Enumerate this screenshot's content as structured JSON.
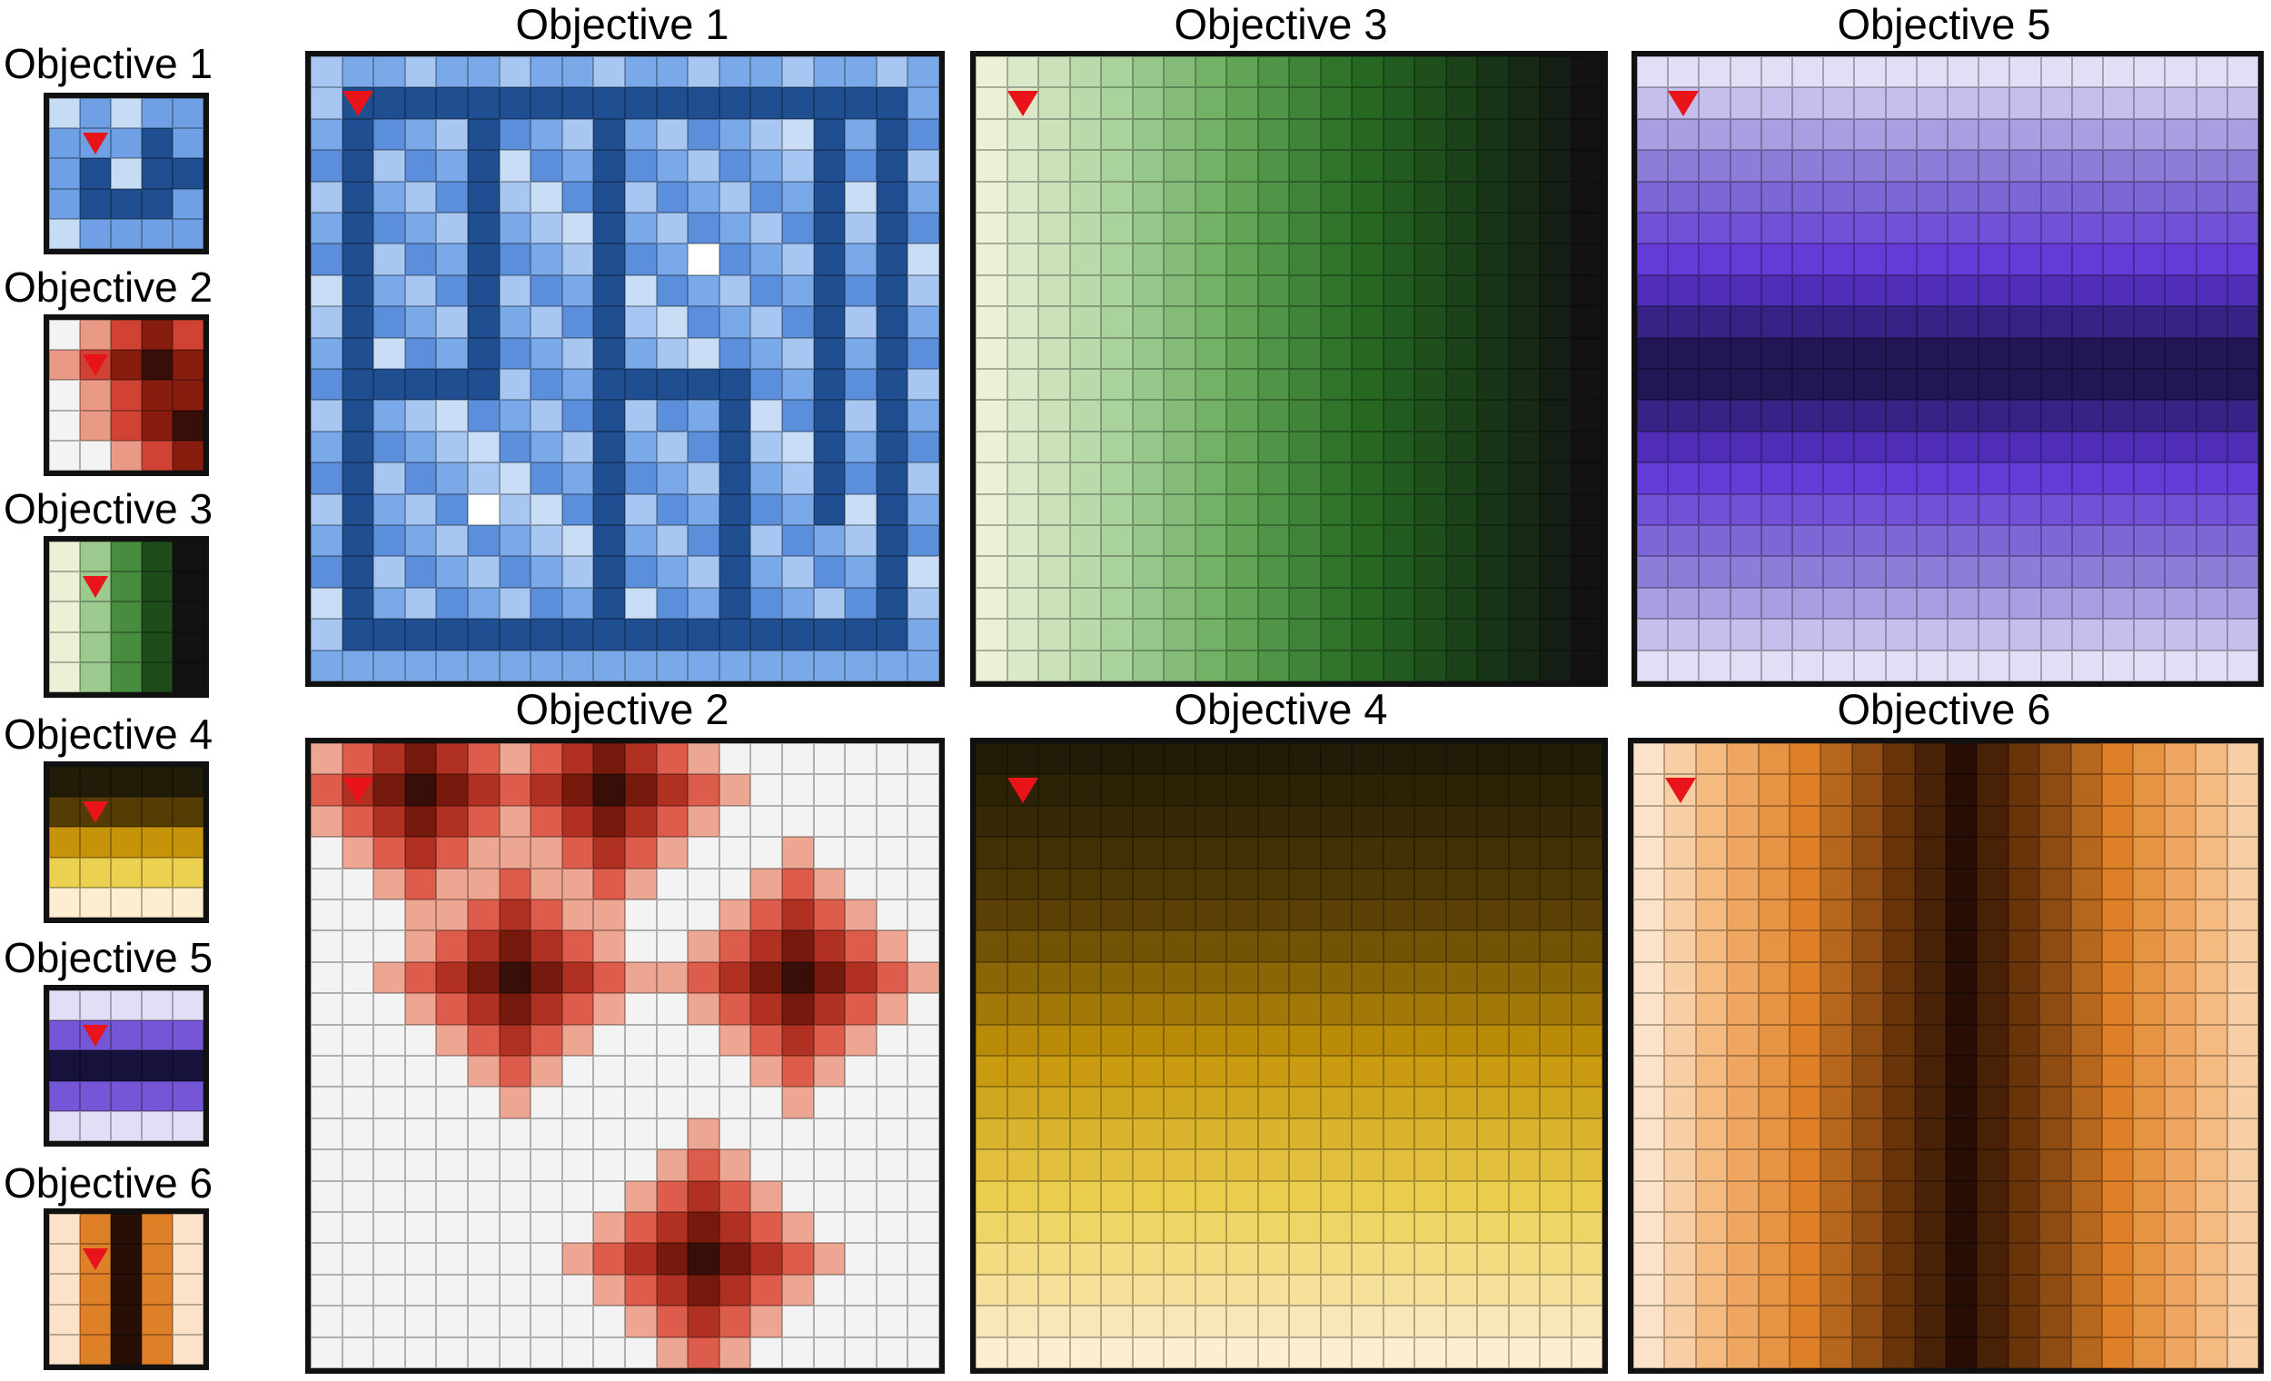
{
  "small_panels": [
    {
      "title": "Objective 1",
      "grid": 5,
      "pattern": "maze_small",
      "agent": [
        1,
        1
      ]
    },
    {
      "title": "Objective 2",
      "grid": 5,
      "pattern": "hotspots_small",
      "agent": [
        1,
        1
      ]
    },
    {
      "title": "Objective 3",
      "grid": 5,
      "pattern": "vgrad_small",
      "agent": [
        1,
        1
      ]
    },
    {
      "title": "Objective 4",
      "grid": 5,
      "pattern": "hgrad_yellow_small",
      "agent": [
        1,
        1
      ]
    },
    {
      "title": "Objective 5",
      "grid": 5,
      "pattern": "purple_bands_small",
      "agent": [
        1,
        1
      ]
    },
    {
      "title": "Objective 6",
      "grid": 5,
      "pattern": "orange_bands_small",
      "agent": [
        1,
        1
      ]
    }
  ],
  "big_panels": [
    {
      "title": "Objective 1",
      "grid": 20,
      "pattern": "maze",
      "agent": [
        1,
        1
      ]
    },
    {
      "title": "Objective 3",
      "grid": 20,
      "pattern": "green_cols",
      "agent": [
        1,
        1
      ]
    },
    {
      "title": "Objective 5",
      "grid": 20,
      "pattern": "purple_rows",
      "agent": [
        1,
        1
      ]
    },
    {
      "title": "Objective 2",
      "grid": 20,
      "pattern": "hotspots",
      "agent": [
        1,
        1
      ]
    },
    {
      "title": "Objective 4",
      "grid": 20,
      "pattern": "yellow_rows",
      "agent": [
        1,
        1
      ]
    },
    {
      "title": "Objective 6",
      "grid": 20,
      "pattern": "orange_cols",
      "agent": [
        1,
        1
      ]
    }
  ],
  "colors": {
    "agent": "#e8141a",
    "blue_light": "#c6dcf5",
    "blue_mid": "#6fa0e6",
    "blue_dark": "#1f4f91",
    "red_dark": "#8b1a10",
    "green_dark": "#1f5e17",
    "purple_dark": "#1a1540",
    "orange_dark": "#2a0f02"
  }
}
